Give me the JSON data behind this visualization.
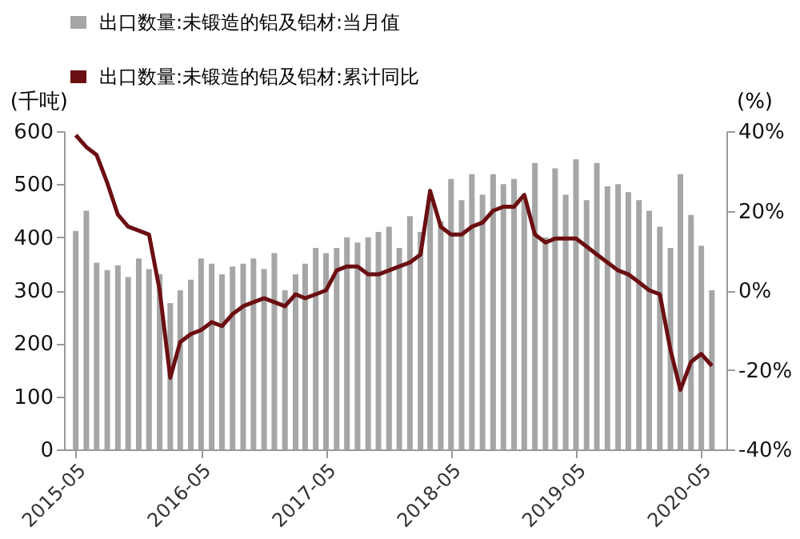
{
  "chart_data": {
    "type": "bar",
    "x": [
      "2015-05",
      "2015-06",
      "2015-07",
      "2015-08",
      "2015-09",
      "2015-10",
      "2015-11",
      "2015-12",
      "2016-01",
      "2016-02",
      "2016-03",
      "2016-04",
      "2016-05",
      "2016-06",
      "2016-07",
      "2016-08",
      "2016-09",
      "2016-10",
      "2016-11",
      "2016-12",
      "2017-01",
      "2017-02",
      "2017-03",
      "2017-04",
      "2017-05",
      "2017-06",
      "2017-07",
      "2017-08",
      "2017-09",
      "2017-10",
      "2017-11",
      "2017-12",
      "2018-01",
      "2018-02",
      "2018-03",
      "2018-04",
      "2018-05",
      "2018-06",
      "2018-07",
      "2018-08",
      "2018-09",
      "2018-10",
      "2018-11",
      "2018-12",
      "2019-01",
      "2019-02",
      "2019-03",
      "2019-04",
      "2019-05",
      "2019-06",
      "2019-07",
      "2019-08",
      "2019-09",
      "2019-10",
      "2019-11",
      "2019-12",
      "2020-01",
      "2020-02",
      "2020-03",
      "2020-04",
      "2020-05",
      "2020-06"
    ],
    "series": [
      {
        "name": "出口数量:未锻造的铝及铝材:当月值",
        "color": "#a6a6a6",
        "values": [
          412,
          450,
          352,
          338,
          347,
          325,
          360,
          340,
          330,
          276,
          300,
          320,
          360,
          350,
          330,
          345,
          350,
          360,
          340,
          370,
          300,
          330,
          350,
          380,
          370,
          380,
          400,
          390,
          400,
          410,
          420,
          380,
          440,
          410,
          479,
          430,
          510,
          470,
          519,
          480,
          519,
          500,
          510,
          470,
          540,
          400,
          530,
          480,
          547,
          470,
          540,
          496,
          500,
          485,
          470,
          450,
          420,
          380,
          519,
          442,
          384,
          300
        ]
      },
      {
        "name": "出口数量:未锻造的铝及铝材:累计同比",
        "color": "#6b0f12",
        "type": "line",
        "axis": "y2",
        "values": [
          39,
          36,
          34,
          27,
          19,
          16,
          15,
          14,
          0,
          -22,
          -13,
          -11,
          -10,
          -8,
          -9,
          -6,
          -4,
          -3,
          -2,
          -3,
          -4,
          -1,
          -2,
          -1,
          0,
          5,
          6,
          6,
          4,
          4,
          5,
          6,
          7,
          9,
          25,
          16,
          14,
          14,
          16,
          17,
          20,
          21,
          21,
          24,
          14,
          12,
          13,
          13,
          13,
          11,
          9,
          7,
          5,
          4,
          2,
          0,
          -1,
          -15,
          -25,
          -18,
          -16,
          -19
        ]
      }
    ],
    "ylabel": "(千吨)",
    "y2label": "(%)",
    "xlim": [
      "2015-04-20",
      "2020-06-20"
    ],
    "xticks": [
      {
        "value": "2015-05",
        "label": "2015-05"
      },
      {
        "value": "2016-05",
        "label": "2016-05"
      },
      {
        "value": "2017-05",
        "label": "2017-05"
      },
      {
        "value": "2018-05",
        "label": "2018-05"
      },
      {
        "value": "2019-05",
        "label": "2019-05"
      },
      {
        "value": "2020-05",
        "label": "2020-05"
      }
    ],
    "ylim": [
      0,
      600
    ],
    "yticks": [
      0,
      100,
      200,
      300,
      400,
      500,
      600
    ],
    "y2lim": [
      -40,
      40
    ],
    "y2ticks": [
      {
        "value": -40,
        "label": "-40%"
      },
      {
        "value": -20,
        "label": "-20%"
      },
      {
        "value": 0,
        "label": "0%"
      },
      {
        "value": 20,
        "label": "20%"
      },
      {
        "value": 40,
        "label": "40%"
      }
    ],
    "legend": "top",
    "grid": false
  }
}
